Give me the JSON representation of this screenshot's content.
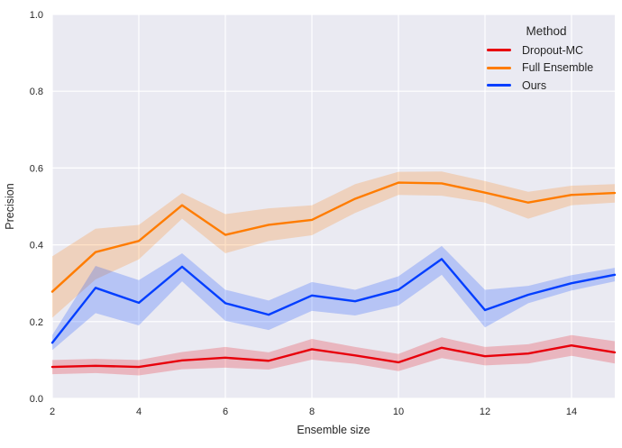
{
  "figure": {
    "background": "#ffffff",
    "plot_background": "#eaeaf2",
    "grid_color": "#ffffff",
    "text_color": "#262626"
  },
  "chart_data": {
    "type": "line",
    "xlabel": "Ensemble size",
    "ylabel": "Precision",
    "legend_title": "Method",
    "legend_position": "upper right",
    "grid": true,
    "xlim": [
      2,
      15
    ],
    "ylim": [
      0.0,
      1.0
    ],
    "xticks": [
      2,
      4,
      6,
      8,
      10,
      12,
      14
    ],
    "xtick_labels": [
      "2",
      "4",
      "6",
      "8",
      "10",
      "12",
      "14"
    ],
    "yticks": [
      0.0,
      0.2,
      0.4,
      0.6,
      0.8,
      1.0
    ],
    "ytick_labels": [
      "0.0",
      "0.2",
      "0.4",
      "0.6",
      "0.8",
      "1.0"
    ],
    "x": [
      2,
      3,
      4,
      5,
      6,
      7,
      8,
      9,
      10,
      11,
      12,
      13,
      14,
      15
    ],
    "band_alpha": 0.22,
    "line_width": 2.4,
    "series": [
      {
        "name": "Dropout-MC",
        "color": "#e8000b",
        "values": [
          0.082,
          0.085,
          0.082,
          0.099,
          0.106,
          0.098,
          0.128,
          0.112,
          0.094,
          0.132,
          0.11,
          0.117,
          0.138,
          0.12
        ],
        "band_low": [
          0.063,
          0.066,
          0.06,
          0.076,
          0.08,
          0.075,
          0.101,
          0.09,
          0.071,
          0.105,
          0.086,
          0.091,
          0.111,
          0.091
        ],
        "band_high": [
          0.1,
          0.103,
          0.1,
          0.121,
          0.134,
          0.12,
          0.155,
          0.134,
          0.116,
          0.159,
          0.134,
          0.141,
          0.165,
          0.149
        ]
      },
      {
        "name": "Full Ensemble",
        "color": "#ff7c00",
        "values": [
          0.278,
          0.381,
          0.41,
          0.503,
          0.426,
          0.452,
          0.465,
          0.52,
          0.562,
          0.56,
          0.536,
          0.51,
          0.53,
          0.535
        ],
        "band_low": [
          0.21,
          0.31,
          0.362,
          0.468,
          0.378,
          0.41,
          0.425,
          0.483,
          0.53,
          0.528,
          0.51,
          0.468,
          0.503,
          0.51
        ],
        "band_high": [
          0.37,
          0.442,
          0.452,
          0.535,
          0.48,
          0.495,
          0.503,
          0.558,
          0.59,
          0.591,
          0.566,
          0.538,
          0.554,
          0.558
        ]
      },
      {
        "name": "Ours",
        "color": "#023eff",
        "values": [
          0.145,
          0.288,
          0.249,
          0.343,
          0.248,
          0.218,
          0.268,
          0.253,
          0.283,
          0.363,
          0.23,
          0.27,
          0.3,
          0.322
        ],
        "band_low": [
          0.126,
          0.222,
          0.19,
          0.305,
          0.202,
          0.178,
          0.228,
          0.216,
          0.242,
          0.322,
          0.185,
          0.248,
          0.281,
          0.305
        ],
        "band_high": [
          0.165,
          0.345,
          0.308,
          0.378,
          0.283,
          0.255,
          0.303,
          0.283,
          0.318,
          0.397,
          0.283,
          0.293,
          0.321,
          0.34
        ]
      }
    ]
  }
}
